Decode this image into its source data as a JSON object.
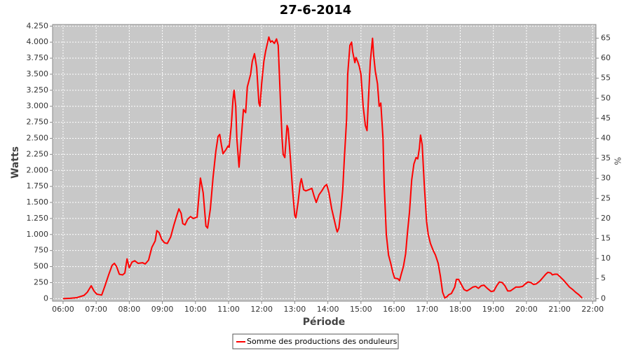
{
  "chart_data": {
    "type": "line",
    "title": "27-6-2014",
    "x_label": "Période",
    "y_label": "Watts",
    "y2_label": "%",
    "x": [
      "06:00",
      "06:13",
      "06:25",
      "06:38",
      "06:44",
      "06:51",
      "06:56",
      "07:01",
      "07:10",
      "07:16",
      "07:23",
      "07:29",
      "07:33",
      "07:37",
      "07:42",
      "07:48",
      "07:52",
      "07:56",
      "08:00",
      "08:05",
      "08:10",
      "08:16",
      "08:24",
      "08:29",
      "08:35",
      "08:41",
      "08:47",
      "08:50",
      "08:54",
      "08:59",
      "09:04",
      "09:09",
      "09:15",
      "09:21",
      "09:27",
      "09:30",
      "09:34",
      "09:37",
      "09:41",
      "09:46",
      "09:51",
      "09:56",
      "10:03",
      "10:09",
      "10:14",
      "10:19",
      "10:22",
      "10:27",
      "10:32",
      "10:37",
      "10:41",
      "10:44",
      "10:47",
      "10:50",
      "10:55",
      "10:59",
      "11:01",
      "11:05",
      "11:08",
      "11:10",
      "11:13",
      "11:15",
      "11:19",
      "11:23",
      "11:27",
      "11:31",
      "11:34",
      "11:40",
      "11:43",
      "11:47",
      "11:51",
      "11:55",
      "11:57",
      "12:00",
      "12:04",
      "12:07",
      "12:13",
      "12:16",
      "12:19",
      "12:23",
      "12:27",
      "12:30",
      "12:34",
      "12:37",
      "12:39",
      "12:42",
      "12:46",
      "12:48",
      "12:52",
      "12:56",
      "13:00",
      "13:02",
      "13:06",
      "13:10",
      "13:12",
      "13:16",
      "13:20",
      "13:26",
      "13:31",
      "13:35",
      "13:39",
      "13:44",
      "13:49",
      "13:54",
      "13:58",
      "14:02",
      "14:07",
      "14:11",
      "14:15",
      "14:17",
      "14:20",
      "14:24",
      "14:27",
      "14:30",
      "14:34",
      "14:36",
      "14:40",
      "14:43",
      "14:45",
      "14:49",
      "14:51",
      "14:54",
      "14:57",
      "15:00",
      "15:04",
      "15:08",
      "15:11",
      "15:13",
      "15:17",
      "15:21",
      "15:23",
      "15:26",
      "15:30",
      "15:33",
      "15:36",
      "15:40",
      "15:42",
      "15:46",
      "15:50",
      "15:54",
      "15:58",
      "16:01",
      "16:07",
      "16:10",
      "16:13",
      "16:17",
      "16:21",
      "16:24",
      "16:28",
      "16:32",
      "16:36",
      "16:40",
      "16:43",
      "16:46",
      "16:48",
      "16:51",
      "16:55",
      "16:59",
      "17:02",
      "17:06",
      "17:11",
      "17:15",
      "17:20",
      "17:24",
      "17:28",
      "17:32",
      "17:36",
      "17:39",
      "17:44",
      "17:50",
      "17:53",
      "17:57",
      "18:02",
      "18:07",
      "18:12",
      "18:18",
      "18:23",
      "18:28",
      "18:33",
      "18:38",
      "18:43",
      "18:49",
      "18:56",
      "19:01",
      "19:06",
      "19:11",
      "19:16",
      "19:21",
      "19:26",
      "19:31",
      "19:36",
      "19:41",
      "19:47",
      "19:53",
      "19:58",
      "20:03",
      "20:08",
      "20:13",
      "20:18",
      "20:25",
      "20:30",
      "20:35",
      "20:39",
      "20:44",
      "20:47",
      "20:51",
      "20:56",
      "21:01",
      "21:07",
      "21:13",
      "21:18",
      "21:24",
      "21:29",
      "21:35",
      "21:41"
    ],
    "series": [
      {
        "name": "Somme des productions des onduleurs",
        "color": "#ff0000",
        "values": [
          0,
          5,
          15,
          50,
          100,
          200,
          120,
          70,
          55,
          200,
          380,
          520,
          550,
          500,
          380,
          370,
          400,
          620,
          480,
          570,
          590,
          550,
          560,
          540,
          600,
          800,
          900,
          1060,
          1030,
          920,
          870,
          860,
          960,
          1150,
          1320,
          1400,
          1330,
          1170,
          1150,
          1240,
          1280,
          1250,
          1270,
          1880,
          1650,
          1130,
          1100,
          1400,
          1900,
          2300,
          2530,
          2560,
          2400,
          2260,
          2320,
          2380,
          2360,
          2700,
          3100,
          3250,
          3000,
          2500,
          2050,
          2500,
          2950,
          2900,
          3300,
          3500,
          3700,
          3820,
          3600,
          3050,
          3000,
          3350,
          3700,
          3850,
          4080,
          4000,
          4020,
          3980,
          4050,
          3950,
          3100,
          2500,
          2250,
          2200,
          2700,
          2650,
          2200,
          1700,
          1300,
          1260,
          1500,
          1800,
          1870,
          1700,
          1680,
          1700,
          1720,
          1600,
          1500,
          1620,
          1680,
          1750,
          1780,
          1650,
          1400,
          1250,
          1100,
          1040,
          1100,
          1400,
          1700,
          2200,
          2800,
          3500,
          3950,
          4000,
          3850,
          3680,
          3760,
          3700,
          3620,
          3500,
          3000,
          2700,
          2620,
          3000,
          3700,
          4060,
          3800,
          3550,
          3350,
          3000,
          3050,
          2500,
          1800,
          1000,
          680,
          550,
          400,
          320,
          310,
          280,
          380,
          500,
          700,
          1000,
          1350,
          1850,
          2100,
          2200,
          2180,
          2350,
          2550,
          2400,
          1750,
          1200,
          1000,
          860,
          750,
          680,
          550,
          350,
          100,
          10,
          30,
          60,
          80,
          180,
          300,
          300,
          220,
          140,
          120,
          150,
          180,
          190,
          160,
          200,
          210,
          160,
          110,
          120,
          200,
          260,
          250,
          200,
          120,
          120,
          150,
          180,
          180,
          190,
          230,
          260,
          250,
          220,
          230,
          280,
          330,
          380,
          410,
          400,
          370,
          380,
          380,
          340,
          290,
          230,
          180,
          140,
          100,
          60,
          10
        ]
      }
    ],
    "xlim": [
      "05:41",
      "22:06"
    ],
    "xticks": [
      "06:00",
      "07:00",
      "08:00",
      "09:00",
      "10:00",
      "11:00",
      "12:00",
      "13:00",
      "14:00",
      "15:00",
      "16:00",
      "17:00",
      "18:00",
      "19:00",
      "20:00",
      "21:00",
      "22:00"
    ],
    "ylim": [
      -40,
      4275
    ],
    "yticks": [
      0,
      250,
      500,
      750,
      {
        "value": 1000,
        "label": "1.000"
      },
      {
        "value": 1250,
        "label": "1.250"
      },
      {
        "value": 1500,
        "label": "1.500"
      },
      {
        "value": 1750,
        "label": "1.750"
      },
      {
        "value": 2000,
        "label": "2.000"
      },
      {
        "value": 2250,
        "label": "2.250"
      },
      {
        "value": 2500,
        "label": "2.500"
      },
      {
        "value": 2750,
        "label": "2.750"
      },
      {
        "value": 3000,
        "label": "3.000"
      },
      {
        "value": 3250,
        "label": "3.250"
      },
      {
        "value": 3500,
        "label": "3.500"
      },
      {
        "value": 3750,
        "label": "3.750"
      },
      {
        "value": 4000,
        "label": "4.000"
      },
      {
        "value": 4250,
        "label": "4.250"
      }
    ],
    "y2lim": [
      -0.64,
      68.4
    ],
    "y2ticks": [
      0,
      5,
      10,
      15,
      20,
      25,
      30,
      35,
      40,
      45,
      50,
      55,
      60,
      65
    ],
    "grid": true
  }
}
